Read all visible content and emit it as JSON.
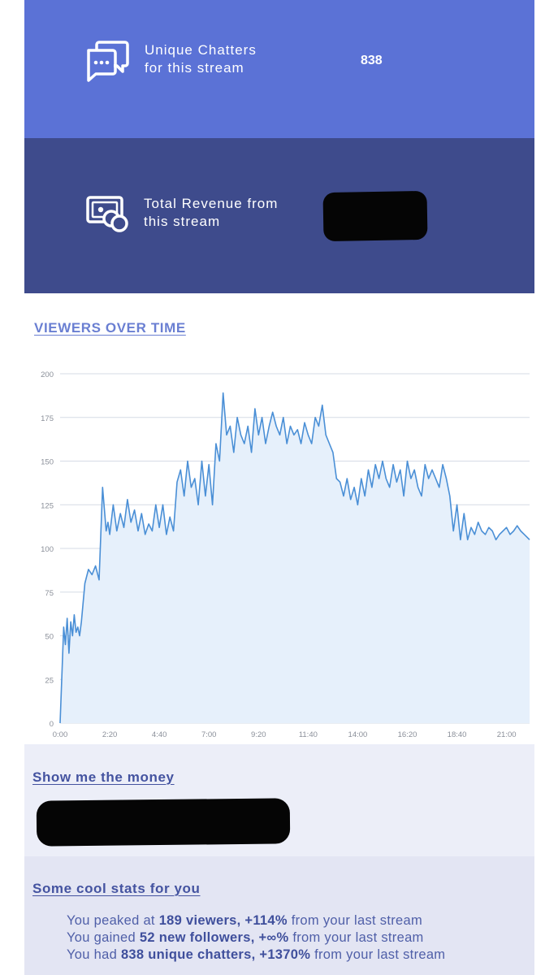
{
  "chatters_panel": {
    "label_line1": "Unique Chatters",
    "label_line2": "for this stream",
    "value": "838",
    "icon": "chat-bubbles-icon"
  },
  "revenue_panel": {
    "label_line1": "Total Revenue from",
    "label_line2": "this stream",
    "value_redacted": true,
    "icon": "money-coins-icon"
  },
  "viewers": {
    "title": "VIEWERS OVER TIME"
  },
  "chart_data": {
    "type": "area",
    "title": "VIEWERS OVER TIME",
    "xlabel": "",
    "ylabel": "",
    "ylim": [
      0,
      200
    ],
    "yticks": [
      "0",
      "25",
      "50",
      "75",
      "100",
      "125",
      "150",
      "175",
      "200"
    ],
    "xticks": [
      "0:00",
      "2:20",
      "4:40",
      "7:00",
      "9:20",
      "11:40",
      "14:00",
      "16:20",
      "18:40",
      "21:00"
    ],
    "xlim_minutes": [
      0,
      1325
    ],
    "line_color": "#4a8fd6",
    "fill_color": "#e6f0fb",
    "grid": true,
    "x": [
      0,
      10,
      15,
      20,
      25,
      30,
      35,
      40,
      45,
      50,
      55,
      60,
      70,
      80,
      90,
      100,
      110,
      120,
      130,
      135,
      140,
      150,
      160,
      170,
      180,
      190,
      200,
      210,
      220,
      230,
      240,
      250,
      260,
      270,
      280,
      290,
      300,
      310,
      320,
      330,
      340,
      350,
      360,
      370,
      380,
      390,
      400,
      410,
      420,
      430,
      440,
      450,
      460,
      470,
      480,
      490,
      500,
      510,
      520,
      530,
      540,
      550,
      560,
      570,
      580,
      590,
      600,
      610,
      620,
      630,
      640,
      650,
      660,
      670,
      680,
      690,
      700,
      710,
      720,
      730,
      740,
      750,
      760,
      770,
      780,
      790,
      800,
      810,
      820,
      830,
      840,
      850,
      860,
      870,
      880,
      890,
      900,
      910,
      920,
      930,
      940,
      950,
      960,
      970,
      980,
      990,
      1000,
      1010,
      1020,
      1030,
      1040,
      1050,
      1060,
      1070,
      1080,
      1090,
      1100,
      1110,
      1120,
      1130,
      1140,
      1150,
      1160,
      1170,
      1180,
      1190,
      1200,
      1210,
      1220,
      1230,
      1240,
      1250,
      1260,
      1270,
      1280,
      1290,
      1300,
      1310,
      1320,
      1325
    ],
    "values": [
      0,
      55,
      45,
      60,
      40,
      58,
      50,
      62,
      52,
      55,
      50,
      58,
      80,
      88,
      85,
      90,
      82,
      135,
      110,
      115,
      108,
      125,
      110,
      120,
      112,
      128,
      115,
      122,
      110,
      120,
      108,
      114,
      110,
      125,
      112,
      125,
      108,
      118,
      110,
      138,
      145,
      130,
      150,
      135,
      140,
      125,
      150,
      130,
      148,
      125,
      160,
      150,
      189,
      165,
      170,
      155,
      175,
      165,
      160,
      170,
      155,
      180,
      165,
      175,
      160,
      170,
      178,
      170,
      165,
      175,
      160,
      170,
      165,
      168,
      160,
      172,
      165,
      160,
      175,
      170,
      182,
      165,
      160,
      155,
      140,
      138,
      130,
      140,
      128,
      135,
      125,
      140,
      130,
      145,
      135,
      148,
      140,
      150,
      140,
      135,
      148,
      138,
      145,
      130,
      150,
      140,
      145,
      135,
      130,
      148,
      140,
      145,
      140,
      135,
      148,
      140,
      130,
      110,
      125,
      105,
      120,
      105,
      112,
      108,
      115,
      110,
      108,
      112,
      110,
      105,
      108,
      110,
      112,
      108,
      110,
      113,
      110,
      108,
      106,
      105
    ]
  },
  "money": {
    "title": "Show me the money",
    "value_redacted": true
  },
  "stats": {
    "title": "Some cool stats for you",
    "line1_a": "You peaked at ",
    "line1_b": "189 viewers, +114%",
    "line1_c": " from your last stream",
    "line2_a": "You gained ",
    "line2_b": "52 new followers, +∞%",
    "line2_c": " from your last stream",
    "line3_a": "You had ",
    "line3_b": "838 unique chatters, +1370%",
    "line3_c": " from your last stream"
  }
}
